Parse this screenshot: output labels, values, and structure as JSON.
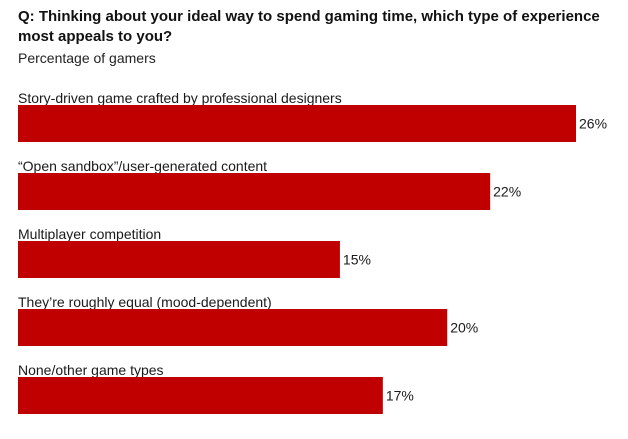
{
  "chart_data": {
    "type": "bar",
    "orientation": "horizontal",
    "title": "Q: Thinking about your ideal way to spend gaming time, which type of experience most appeals to you?",
    "subtitle": "Percentage of gamers",
    "categories": [
      "Story-driven game crafted by professional designers",
      "“Open sandbox”/user-generated content",
      "Multiplayer competition",
      "They’re roughly equal (mood-dependent)",
      "None/other game types"
    ],
    "values": [
      26,
      22,
      15,
      20,
      17
    ],
    "value_labels": [
      "26%",
      "22%",
      "15%",
      "20%",
      "17%"
    ],
    "unit": "%",
    "xlim": [
      0,
      26
    ],
    "grid": false,
    "legend": "none",
    "bar_color": "#c00000"
  }
}
